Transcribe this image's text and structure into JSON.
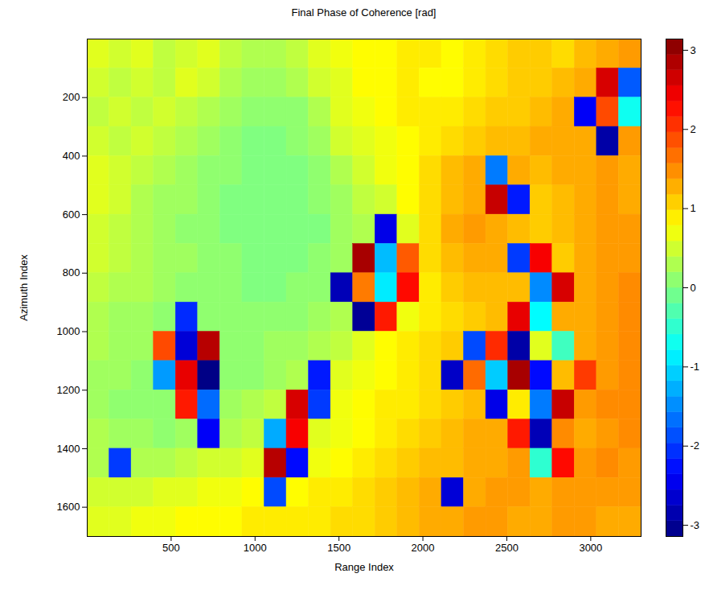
{
  "chart_data": {
    "type": "heatmap",
    "title": "Final Phase of Coherence [rad]",
    "x_label": "Range Index",
    "y_label": "Azimuth Index",
    "xlim": [
      0,
      3300
    ],
    "ylim": [
      0,
      1700
    ],
    "xticks": [
      500,
      1000,
      1500,
      2000,
      2500,
      3000
    ],
    "yticks": [
      200,
      400,
      600,
      800,
      1000,
      1200,
      1400,
      1600
    ],
    "x_edges": [
      0,
      132,
      264,
      396,
      528,
      660,
      792,
      924,
      1056,
      1188,
      1320,
      1452,
      1584,
      1716,
      1848,
      1980,
      2112,
      2244,
      2376,
      2508,
      2640,
      2772,
      2904,
      3036,
      3168,
      3300
    ],
    "y_edges": [
      0,
      100,
      200,
      300,
      400,
      500,
      600,
      700,
      800,
      900,
      1000,
      1100,
      1200,
      1300,
      1400,
      1500,
      1600,
      1700
    ],
    "z": [
      [
        0.6,
        0.5,
        0.6,
        0.4,
        0.5,
        0.6,
        0.4,
        0.3,
        0.3,
        0.4,
        0.6,
        0.7,
        0.8,
        0.8,
        0.9,
        0.9,
        0.8,
        0.9,
        1.0,
        1.1,
        1.1,
        1.0,
        1.2,
        1.3,
        1.4
      ],
      [
        0.5,
        0.4,
        0.5,
        0.4,
        0.6,
        0.5,
        0.3,
        0.2,
        0.2,
        0.3,
        0.5,
        0.6,
        0.8,
        0.8,
        0.9,
        0.8,
        0.8,
        0.9,
        1.0,
        1.1,
        1.1,
        1.2,
        1.3,
        2.6,
        -1.8
      ],
      [
        0.4,
        0.5,
        0.4,
        0.5,
        0.4,
        0.3,
        0.2,
        0.1,
        0.1,
        0.1,
        0.3,
        0.6,
        0.7,
        0.8,
        0.9,
        0.9,
        0.9,
        1.0,
        1.1,
        1.1,
        1.2,
        1.3,
        -2.4,
        1.9,
        -0.7
      ],
      [
        0.5,
        0.4,
        0.5,
        0.4,
        0.3,
        0.2,
        0.1,
        0.0,
        0.0,
        0.1,
        0.2,
        0.5,
        0.6,
        0.7,
        0.8,
        0.9,
        1.0,
        1.1,
        1.2,
        1.2,
        1.3,
        1.3,
        1.3,
        -2.9,
        1.4
      ],
      [
        0.6,
        0.5,
        0.4,
        0.3,
        0.2,
        0.1,
        0.1,
        0.0,
        0.0,
        0.0,
        0.1,
        0.3,
        0.5,
        0.7,
        0.8,
        1.0,
        1.2,
        1.3,
        -1.6,
        1.3,
        1.2,
        1.3,
        1.3,
        1.4,
        1.3
      ],
      [
        0.6,
        0.5,
        0.3,
        0.2,
        0.2,
        0.1,
        0.0,
        0.0,
        0.0,
        0.0,
        0.1,
        0.2,
        0.4,
        0.5,
        0.8,
        1.0,
        1.2,
        1.3,
        2.7,
        -2.2,
        1.1,
        1.2,
        1.3,
        1.4,
        1.3
      ],
      [
        0.5,
        0.4,
        0.3,
        0.2,
        0.1,
        0.1,
        0.0,
        0.0,
        0.0,
        0.0,
        0.0,
        0.2,
        0.3,
        -2.5,
        0.6,
        1.0,
        1.3,
        1.4,
        1.3,
        1.2,
        1.1,
        1.2,
        1.3,
        1.4,
        1.4
      ],
      [
        0.5,
        0.4,
        0.3,
        0.2,
        0.2,
        0.1,
        0.1,
        0.0,
        0.0,
        0.0,
        0.1,
        0.2,
        2.9,
        -1.2,
        1.8,
        1.0,
        1.2,
        1.3,
        1.3,
        -2.0,
        2.4,
        1.1,
        1.3,
        1.4,
        1.4
      ],
      [
        0.4,
        0.3,
        0.3,
        0.2,
        0.1,
        0.1,
        0.1,
        0.0,
        0.0,
        0.1,
        0.1,
        -2.8,
        1.6,
        -0.9,
        2.3,
        0.9,
        1.1,
        1.2,
        1.2,
        1.2,
        -1.5,
        2.6,
        1.3,
        1.4,
        1.5
      ],
      [
        0.3,
        0.2,
        0.2,
        0.1,
        -2.1,
        0.1,
        0.1,
        0.1,
        0.1,
        0.1,
        0.2,
        0.3,
        -3.0,
        2.2,
        0.7,
        0.9,
        1.0,
        1.1,
        1.2,
        2.5,
        -0.8,
        1.3,
        1.3,
        1.4,
        1.5
      ],
      [
        0.3,
        0.2,
        0.2,
        1.9,
        -2.6,
        2.8,
        0.1,
        0.1,
        0.2,
        0.2,
        0.3,
        0.4,
        0.6,
        0.8,
        0.9,
        1.0,
        1.1,
        -1.9,
        2.1,
        -2.9,
        0.6,
        -0.4,
        1.3,
        1.4,
        1.5
      ],
      [
        0.2,
        0.2,
        0.1,
        -1.4,
        2.5,
        -3.1,
        0.1,
        0.1,
        0.2,
        0.3,
        -2.2,
        0.6,
        0.7,
        0.8,
        0.9,
        1.0,
        -2.7,
        1.7,
        -1.1,
        2.9,
        -2.3,
        1.2,
        2.0,
        1.4,
        1.5
      ],
      [
        0.2,
        0.1,
        0.1,
        0.1,
        2.2,
        -1.7,
        0.2,
        0.3,
        0.4,
        2.6,
        -2.0,
        0.7,
        0.8,
        0.9,
        0.9,
        1.0,
        1.1,
        1.2,
        -2.5,
        0.9,
        -1.6,
        2.7,
        1.4,
        1.5,
        1.5
      ],
      [
        0.3,
        0.2,
        0.2,
        0.1,
        0.2,
        -2.4,
        0.3,
        0.4,
        -1.3,
        2.4,
        0.6,
        0.7,
        0.8,
        0.9,
        1.0,
        1.1,
        1.2,
        1.3,
        1.3,
        2.2,
        -2.8,
        1.5,
        1.3,
        1.4,
        1.5
      ],
      [
        0.3,
        -2.0,
        0.3,
        0.3,
        0.4,
        0.5,
        0.5,
        0.6,
        2.8,
        -2.3,
        0.7,
        0.8,
        0.9,
        1.0,
        1.1,
        1.2,
        1.2,
        1.3,
        1.3,
        1.4,
        -0.5,
        2.3,
        1.4,
        1.5,
        1.4
      ],
      [
        0.5,
        0.5,
        0.5,
        0.6,
        0.6,
        0.7,
        0.7,
        0.8,
        -1.9,
        0.8,
        0.9,
        0.9,
        1.0,
        1.1,
        1.2,
        1.3,
        -2.6,
        1.3,
        1.4,
        1.4,
        1.3,
        1.4,
        1.4,
        1.4,
        1.4
      ],
      [
        0.6,
        0.6,
        0.7,
        0.7,
        0.8,
        0.8,
        0.8,
        0.9,
        0.9,
        0.9,
        0.9,
        1.0,
        1.0,
        1.1,
        1.2,
        1.3,
        1.3,
        1.4,
        1.4,
        1.3,
        1.3,
        1.4,
        1.4,
        1.3,
        1.3
      ]
    ],
    "colorbar": {
      "range": [
        -3.1416,
        3.1416
      ],
      "ticks": [
        -3,
        -2,
        -1,
        0,
        1,
        2,
        3
      ]
    }
  }
}
